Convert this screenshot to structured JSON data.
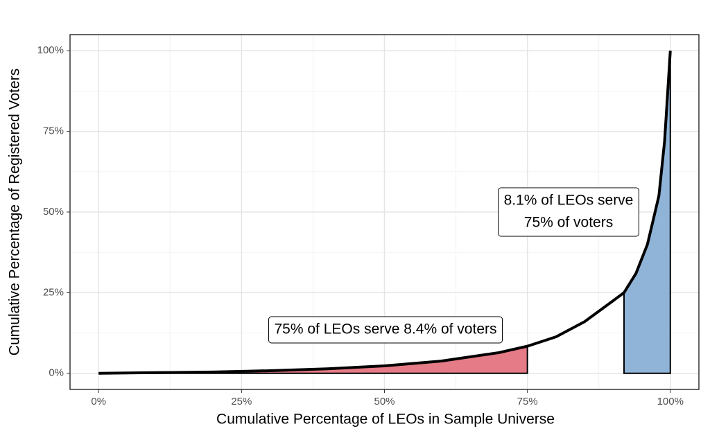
{
  "chart_data": {
    "type": "line",
    "x_label": "Cumulative Percentage of LEOs in Sample Universe",
    "y_label": "Cumulative Percentage of Registered Voters",
    "x": [
      0,
      10,
      20,
      30,
      40,
      50,
      60,
      70,
      75,
      80,
      85,
      90,
      91.9,
      94,
      96,
      98,
      99,
      100
    ],
    "series": [
      {
        "color": "#000000",
        "values": [
          0,
          0.2,
          0.4,
          0.8,
          1.4,
          2.3,
          3.8,
          6.4,
          8.4,
          11.3,
          16,
          22.5,
          25,
          31,
          40,
          55,
          72,
          100
        ]
      }
    ],
    "shaded": [
      {
        "from": 0,
        "to": 75,
        "color": "#e47b86"
      },
      {
        "from": 91.9,
        "to": 100,
        "color": "#8fb4d8"
      }
    ],
    "annotations": [
      {
        "lines": [
          "75% of LEOs serve 8.4% of voters"
        ]
      },
      {
        "lines": [
          "8.1% of LEOs serve",
          "75% of voters"
        ]
      }
    ],
    "xlim": [
      -5,
      105
    ],
    "ylim": [
      -5,
      105
    ],
    "xticks": [
      {
        "value": 0,
        "label": "0%"
      },
      {
        "value": 25,
        "label": "25%"
      },
      {
        "value": 50,
        "label": "50%"
      },
      {
        "value": 75,
        "label": "75%"
      },
      {
        "value": 100,
        "label": "100%"
      }
    ],
    "yticks": [
      {
        "value": 0,
        "label": "0%"
      },
      {
        "value": 25,
        "label": "25%"
      },
      {
        "value": 50,
        "label": "50%"
      },
      {
        "value": 75,
        "label": "75%"
      },
      {
        "value": 100,
        "label": "100%"
      }
    ],
    "xminor": [
      12.5,
      37.5,
      62.5,
      87.5
    ],
    "yminor": [
      12.5,
      37.5,
      62.5,
      87.5
    ],
    "grid": true
  }
}
